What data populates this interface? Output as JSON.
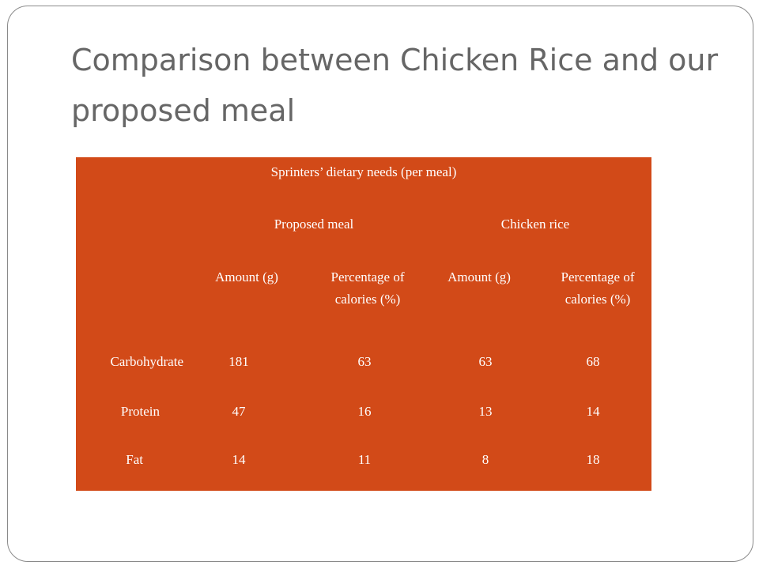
{
  "slide": {
    "title": "Comparison between Chicken Rice and our proposed meal"
  },
  "table": {
    "caption": "Sprinters’ dietary needs (per meal)",
    "group_headers": [
      "Proposed meal",
      "Chicken rice"
    ],
    "column_headers": [
      "Amount (g)",
      "Percentage of calories (%)",
      "Amount (g)",
      "Percentage of calories (%)"
    ],
    "rows": [
      {
        "label": "Carbohydrate",
        "values": [
          "181",
          "63",
          "63",
          "68"
        ]
      },
      {
        "label": "Protein",
        "values": [
          "47",
          "16",
          "13",
          "14"
        ]
      },
      {
        "label": "Fat",
        "values": [
          "14",
          "11",
          "8",
          "18"
        ]
      }
    ]
  },
  "colors": {
    "table_background": "#d24a18",
    "title_text": "#666666",
    "frame_border": "#8a8a8a"
  }
}
